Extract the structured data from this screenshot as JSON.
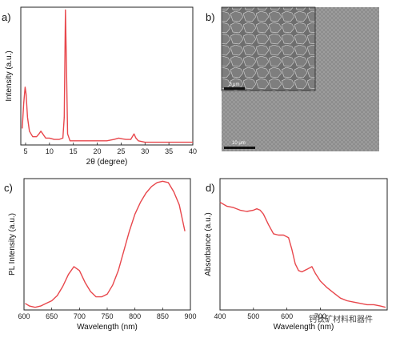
{
  "panel_labels": [
    "a)",
    "b)",
    "c)",
    "d)"
  ],
  "sem": {
    "inset_scale_label": "2 μm",
    "main_scale_label": "10 μm"
  },
  "watermark": "钙钛矿材料和器件",
  "colors": {
    "curve": "#e8474c",
    "axis": "#222222",
    "sem_bg": "#8a8a8a",
    "sem_inset_bg": "#6c6c6c"
  },
  "chart_data": [
    {
      "type": "line",
      "panel": "a)",
      "xlabel": "2θ (degree)",
      "ylabel": "Intensity (a.u.)",
      "xlim": [
        4,
        40
      ],
      "ylim": [
        0,
        1
      ],
      "xticks": [
        5,
        10,
        15,
        20,
        25,
        30,
        35,
        40
      ],
      "grid": false,
      "x": [
        4.3,
        4.6,
        4.9,
        5.1,
        5.4,
        5.8,
        6.5,
        7.3,
        7.8,
        8.2,
        8.6,
        9.2,
        10,
        11,
        12,
        12.8,
        13.1,
        13.35,
        13.55,
        13.8,
        14.3,
        15,
        17,
        20,
        22,
        23.5,
        24.5,
        25.2,
        26,
        27,
        27.7,
        28.1,
        28.6,
        30,
        32,
        35,
        38,
        40
      ],
      "y": [
        0.12,
        0.3,
        0.42,
        0.37,
        0.2,
        0.1,
        0.06,
        0.06,
        0.08,
        0.1,
        0.08,
        0.05,
        0.05,
        0.04,
        0.04,
        0.05,
        0.2,
        0.98,
        0.6,
        0.08,
        0.03,
        0.03,
        0.03,
        0.03,
        0.03,
        0.04,
        0.05,
        0.045,
        0.04,
        0.04,
        0.08,
        0.05,
        0.03,
        0.02,
        0.02,
        0.02,
        0.02,
        0.02
      ]
    },
    {
      "type": "line",
      "panel": "c)",
      "xlabel": "Wavelength (nm)",
      "ylabel": "PL Intensity (a.u.)",
      "xlim": [
        600,
        900
      ],
      "ylim": [
        0,
        1
      ],
      "xticks": [
        600,
        650,
        700,
        750,
        800,
        850,
        900
      ],
      "grid": false,
      "x": [
        602,
        610,
        620,
        630,
        640,
        650,
        660,
        670,
        680,
        690,
        700,
        710,
        720,
        730,
        740,
        750,
        760,
        770,
        780,
        790,
        800,
        810,
        820,
        830,
        840,
        850,
        860,
        870,
        880,
        890
      ],
      "y": [
        0.05,
        0.03,
        0.02,
        0.03,
        0.05,
        0.07,
        0.11,
        0.18,
        0.27,
        0.33,
        0.3,
        0.21,
        0.14,
        0.1,
        0.1,
        0.12,
        0.19,
        0.3,
        0.45,
        0.6,
        0.73,
        0.82,
        0.89,
        0.94,
        0.97,
        0.98,
        0.97,
        0.9,
        0.8,
        0.6
      ]
    },
    {
      "type": "line",
      "panel": "d)",
      "xlabel": "Wavelength (nm)",
      "ylabel": "Absorbance (a.u.)",
      "xlim": [
        400,
        900
      ],
      "ylim": [
        0,
        1
      ],
      "xticks": [
        400,
        500,
        600,
        700
      ],
      "grid": false,
      "x": [
        400,
        420,
        440,
        460,
        480,
        500,
        510,
        520,
        530,
        545,
        560,
        575,
        590,
        605,
        615,
        625,
        635,
        645,
        660,
        675,
        685,
        700,
        720,
        740,
        760,
        780,
        800,
        820,
        840,
        860,
        880,
        895
      ],
      "y": [
        0.82,
        0.79,
        0.78,
        0.76,
        0.75,
        0.76,
        0.77,
        0.76,
        0.73,
        0.65,
        0.58,
        0.57,
        0.57,
        0.55,
        0.46,
        0.35,
        0.3,
        0.29,
        0.31,
        0.33,
        0.28,
        0.22,
        0.17,
        0.13,
        0.09,
        0.07,
        0.06,
        0.05,
        0.04,
        0.04,
        0.03,
        0.02
      ]
    }
  ]
}
